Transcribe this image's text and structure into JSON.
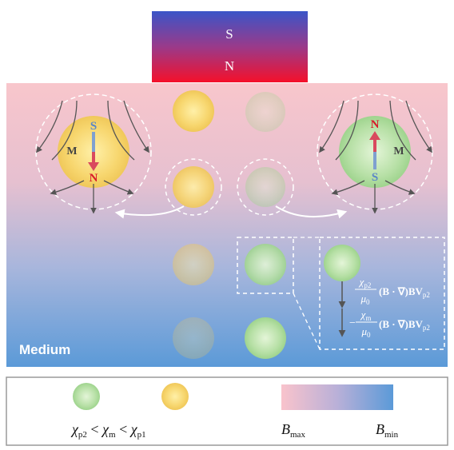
{
  "magnet": {
    "top_pole": "S",
    "bottom_pole": "N"
  },
  "medium_label": "Medium",
  "dipoles": {
    "left": {
      "top": "S",
      "bottom": "N",
      "moment": "M"
    },
    "right": {
      "top": "N",
      "bottom": "S",
      "moment": "M"
    }
  },
  "force_terms": {
    "term1_numerator": "χp2",
    "term1_denominator": "μ0",
    "term1_operator": "(B · ∇)BV",
    "term1_subscript": "p2",
    "term2_sign": "−",
    "term2_numerator": "χm",
    "term2_denominator": "μ0",
    "term2_operator": "(B · ∇)BV",
    "term2_subscript": "p2"
  },
  "legend": {
    "relation": [
      "χ",
      "p2",
      " < ",
      "χ",
      "m",
      " < ",
      "χ",
      "p1"
    ],
    "b_max": [
      "B",
      "max"
    ],
    "b_min": [
      "B",
      "min"
    ]
  },
  "colors": {
    "magnet_top": "#3a55c8",
    "magnet_bottom": "#f5102a",
    "medium_top": "#f8c6cc",
    "medium_bottom": "#5b9ad8",
    "particle_green": "#a8d89a",
    "particle_yellow": "#f7d26a",
    "arrow_red": "#d94a5e",
    "arrow_blue": "#7fa0d0"
  }
}
